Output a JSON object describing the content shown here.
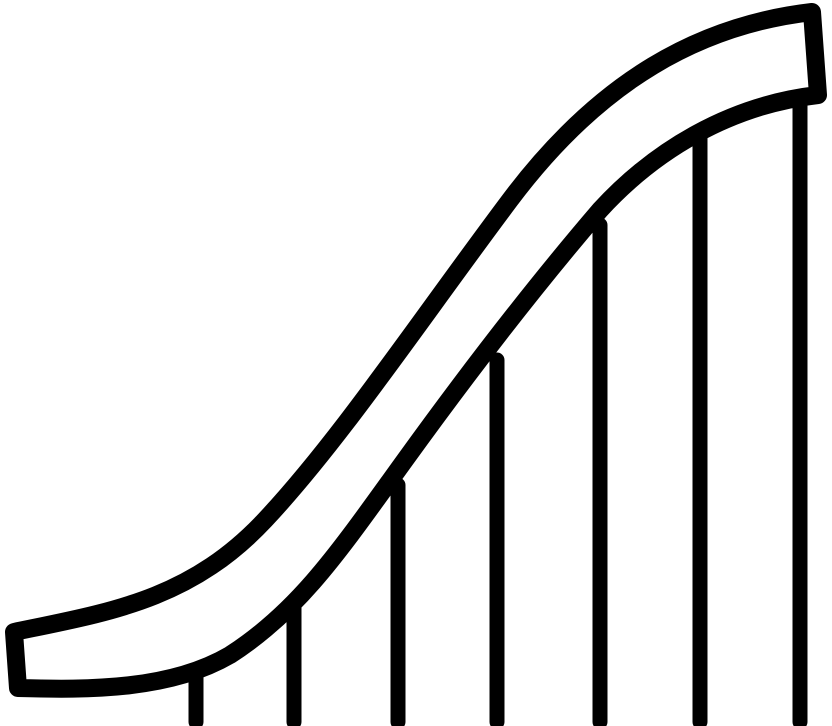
{
  "icon": {
    "name": "roller-coaster-icon",
    "color": "#000000",
    "background": "#ffffff",
    "support_post_count": 7
  }
}
